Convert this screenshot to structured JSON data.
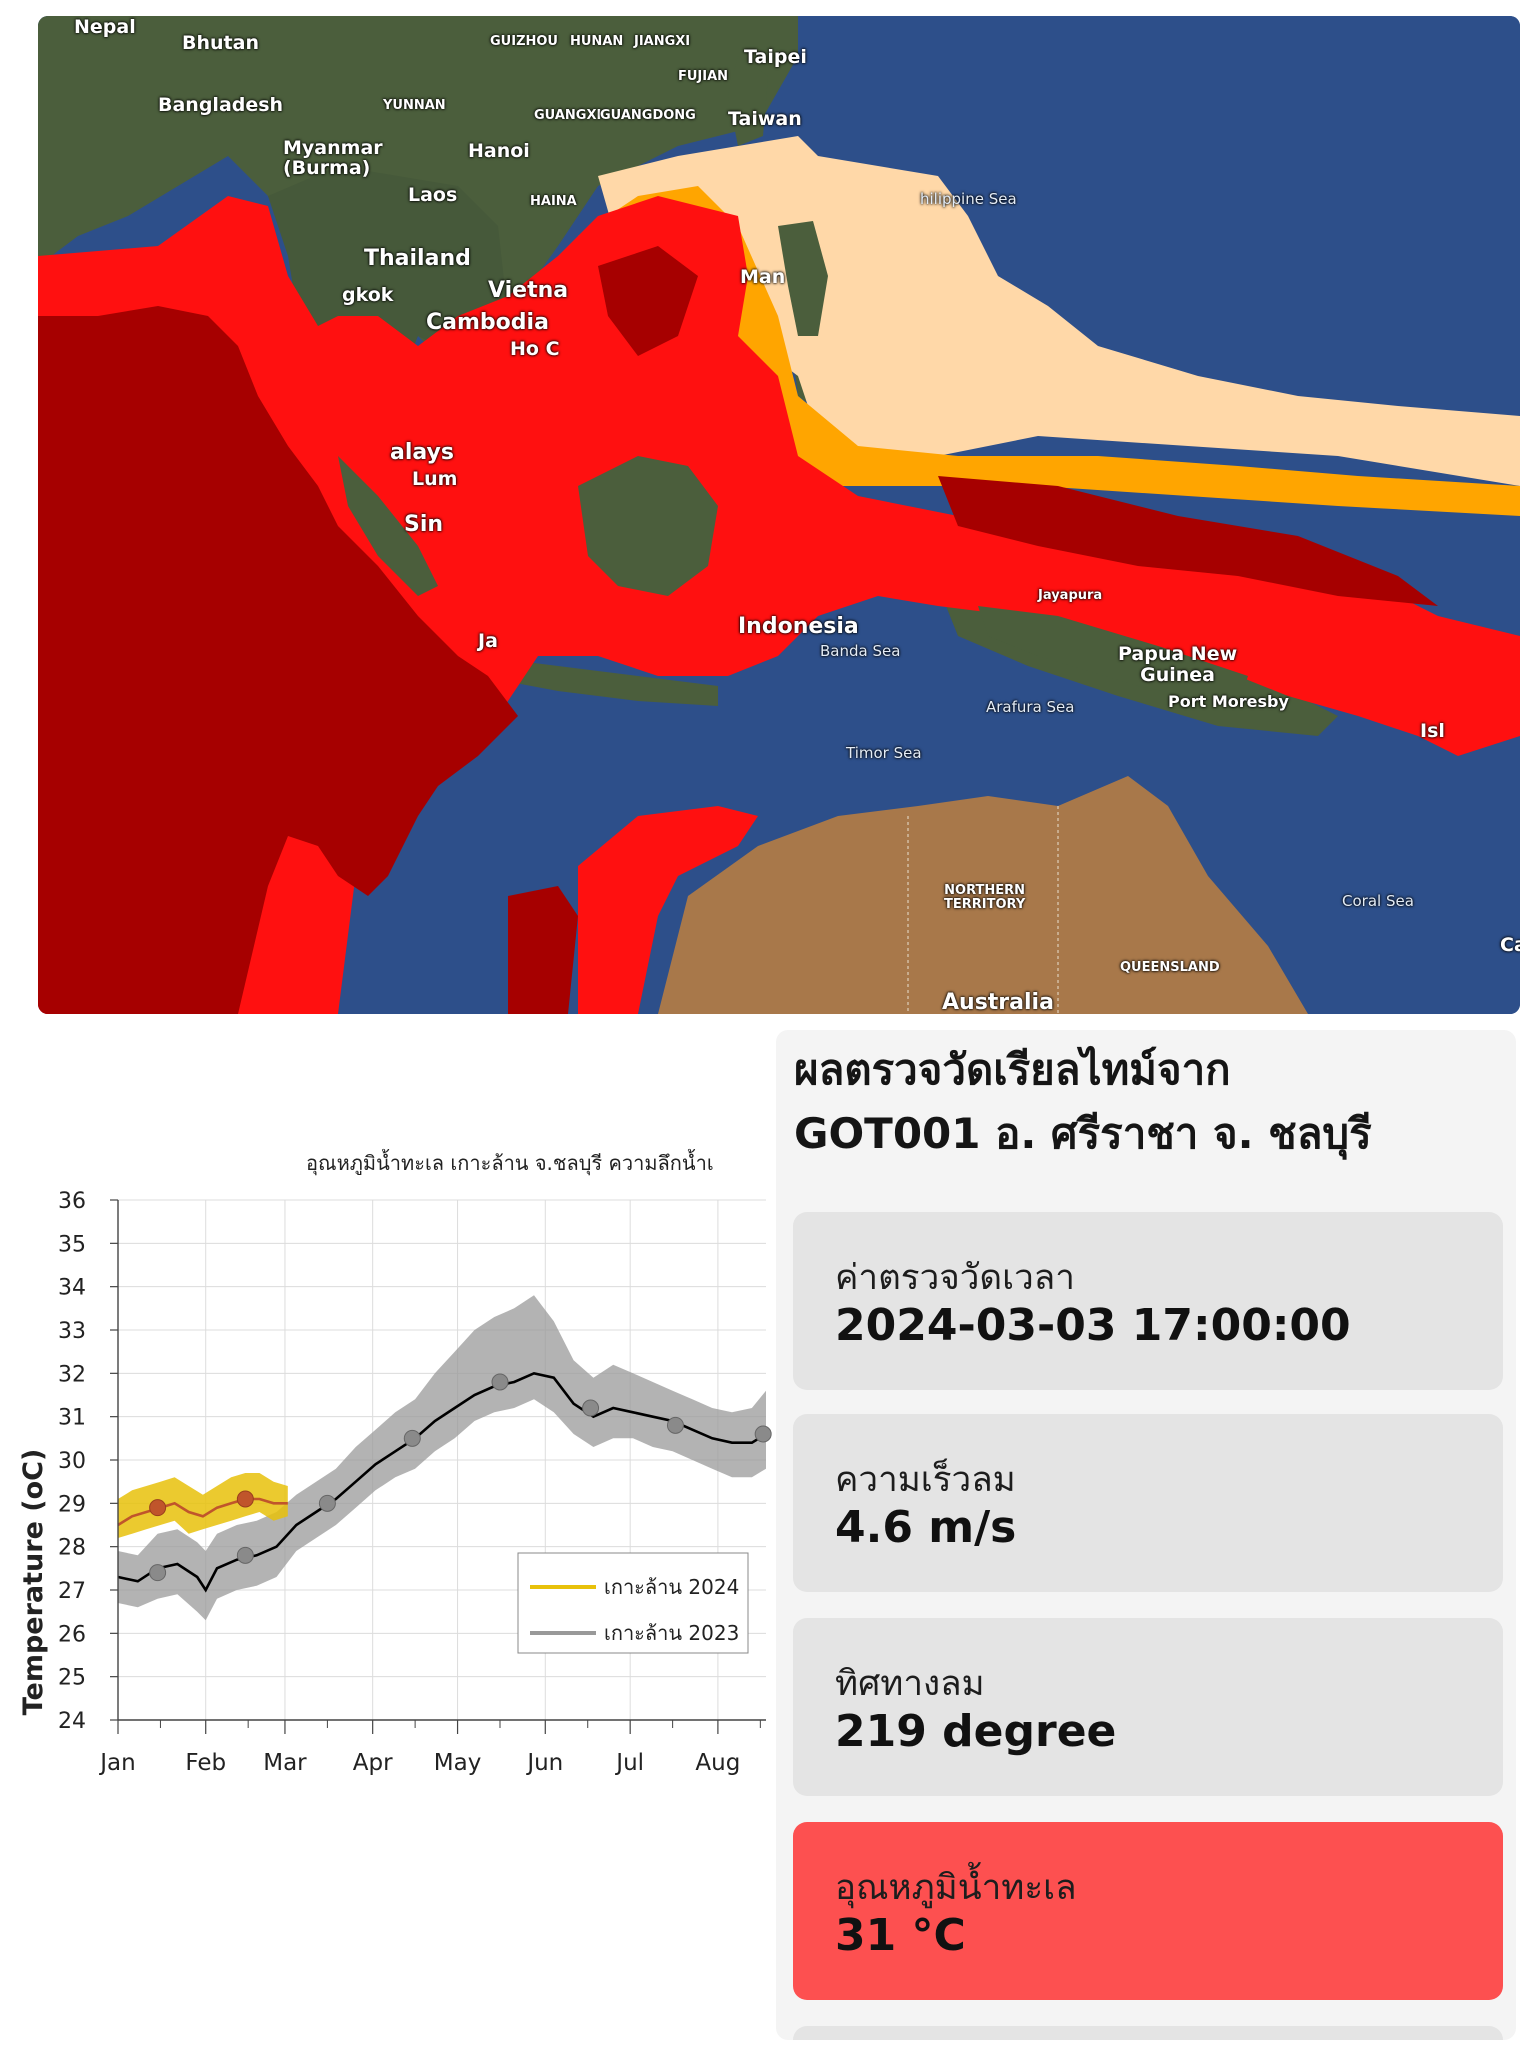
{
  "map": {
    "labels": {
      "nepal": "Nepal",
      "bhutan": "Bhutan",
      "bangladesh": "Bangladesh",
      "myanmar": "Myanmar\n(Burma)",
      "yunnan": "YUNNAN",
      "guizhou": "GUIZHOU",
      "hunan": "HUNAN",
      "jiangxi": "JIANGXI",
      "fujian": "FUJIAN",
      "guangxi": "GUANGXI",
      "guangdong": "GUANGDONG",
      "taipei": "Taipei",
      "taiwan": "Taiwan",
      "hanoi": "Hanoi",
      "laos": "Laos",
      "hainan": "HAINA",
      "thailand": "Thailand",
      "vietnam": "Vietna",
      "cambodia": "Cambodia",
      "hochiminh": "Ho C",
      "bangkok": "gkok",
      "philippine_sea": "hilippine Sea",
      "manila": "Man",
      "malaysia": "alays",
      "kuala_lumpur": "Lum",
      "singapore": "Sin",
      "indonesia": "Indonesia",
      "jakarta": "Ja",
      "jayapura": "Jayapura",
      "banda_sea": "Banda Sea",
      "papua": "Papua New\nGuinea",
      "port_moresby": "Port Moresby",
      "arafura_sea": "Arafura Sea",
      "timor_sea": "Timor Sea",
      "northern_territory": "NORTHERN\nTERRITORY",
      "coral_sea": "Coral Sea",
      "queensland": "QUEENSLAND",
      "australia": "Australia",
      "isl": "Isl",
      "ca": "Ca"
    },
    "colors": {
      "ocean": "#2d4f8a",
      "land": "#4b5e3c",
      "australia": "#a8784a",
      "dark_red": "#a60000",
      "red": "#ff1010",
      "orange": "#ffa500",
      "peach": "#ffd8a8"
    }
  },
  "chart_data": {
    "type": "line",
    "title": "อุณหภูมิน้ำทะเล เกาะล้าน จ.ชลบุรี ความลึกน้ำเ",
    "ylabel": "Temperature (oC)",
    "xlabel": "",
    "ylim": [
      24,
      36
    ],
    "yticks": [
      "24",
      "25",
      "26",
      "27",
      "28",
      "29",
      "30",
      "31",
      "32",
      "33",
      "34",
      "35",
      "36"
    ],
    "month_labels": [
      "Jan",
      "Feb",
      "Mar",
      "Apr",
      "May",
      "Jun",
      "Jul",
      "Aug"
    ],
    "x_unit": "day of year",
    "xlim": [
      1,
      230
    ],
    "grid": true,
    "legend_position": "lower-right",
    "series": [
      {
        "name": "เกาะล้าน 2024",
        "color": "#e8c10a",
        "mean_color": "#c0552b",
        "x": [
          1,
          6,
          11,
          16,
          21,
          26,
          31,
          36,
          41,
          46,
          51,
          56,
          61
        ],
        "values": [
          28.5,
          28.7,
          28.8,
          28.9,
          29.0,
          28.8,
          28.7,
          28.9,
          29.0,
          29.1,
          29.1,
          29.0,
          29.0
        ],
        "band_low": [
          28.2,
          28.3,
          28.4,
          28.5,
          28.6,
          28.3,
          28.4,
          28.5,
          28.6,
          28.7,
          28.8,
          28.6,
          28.7
        ],
        "band_high": [
          29.1,
          29.3,
          29.4,
          29.5,
          29.6,
          29.4,
          29.2,
          29.4,
          29.6,
          29.7,
          29.7,
          29.5,
          29.4
        ],
        "markers_x": [
          15,
          46
        ],
        "markers_y": [
          28.9,
          29.1
        ]
      },
      {
        "name": "เกาะล้าน 2023",
        "color": "#999999",
        "mean_color": "#000000",
        "x": [
          1,
          8,
          15,
          22,
          29,
          32,
          36,
          43,
          50,
          57,
          64,
          71,
          78,
          85,
          92,
          99,
          106,
          113,
          120,
          127,
          134,
          141,
          148,
          155,
          162,
          169,
          176,
          183,
          190,
          197,
          204,
          211,
          218,
          225,
          230
        ],
        "values": [
          27.3,
          27.2,
          27.5,
          27.6,
          27.3,
          27.0,
          27.5,
          27.7,
          27.8,
          28.0,
          28.5,
          28.8,
          29.1,
          29.5,
          29.9,
          30.2,
          30.5,
          30.9,
          31.2,
          31.5,
          31.7,
          31.8,
          32.0,
          31.9,
          31.3,
          31.0,
          31.2,
          31.1,
          31.0,
          30.9,
          30.7,
          30.5,
          30.4,
          30.4,
          30.6
        ],
        "band_low": [
          26.7,
          26.6,
          26.8,
          26.9,
          26.5,
          26.3,
          26.8,
          27.0,
          27.1,
          27.3,
          27.9,
          28.2,
          28.5,
          28.9,
          29.3,
          29.6,
          29.8,
          30.2,
          30.5,
          30.9,
          31.1,
          31.2,
          31.4,
          31.1,
          30.6,
          30.3,
          30.5,
          30.5,
          30.3,
          30.2,
          30.0,
          29.8,
          29.6,
          29.6,
          29.8
        ],
        "band_high": [
          27.9,
          27.8,
          28.3,
          28.4,
          28.1,
          27.9,
          28.3,
          28.5,
          28.6,
          28.8,
          29.2,
          29.5,
          29.8,
          30.3,
          30.7,
          31.1,
          31.4,
          32.0,
          32.5,
          33.0,
          33.3,
          33.5,
          33.8,
          33.2,
          32.3,
          31.9,
          32.2,
          32.0,
          31.8,
          31.6,
          31.4,
          31.2,
          31.1,
          31.2,
          31.6
        ],
        "markers_x": [
          15,
          46,
          75,
          105,
          136,
          168,
          198,
          229
        ],
        "markers_y": [
          27.4,
          27.8,
          29.0,
          30.5,
          31.8,
          31.2,
          30.8,
          30.6
        ]
      }
    ]
  },
  "panel": {
    "title_line1": "ผลตรวจวัดเรียลไทม์จาก",
    "title_line2": "GOT001 อ. ศรีราชา จ. ชลบุรี",
    "cards": [
      {
        "label": "ค่าตรวจวัดเวลา",
        "value": "2024-03-03 17:00:00"
      },
      {
        "label": "ความเร็วลม",
        "value": "4.6 m/s"
      },
      {
        "label": "ทิศทางลม",
        "value": "219 degree"
      },
      {
        "label": "อุณหภูมิน้ำทะเล",
        "value": "31 °C"
      }
    ],
    "alert_color": "#fd5050"
  }
}
